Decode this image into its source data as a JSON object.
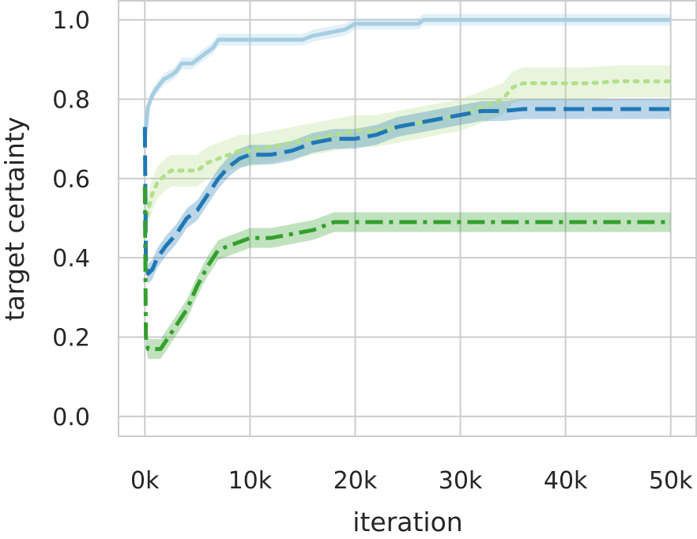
{
  "chart_data": {
    "type": "line",
    "title": "",
    "xlabel": "iteration",
    "ylabel": "target certainty",
    "xlim": [
      -2500,
      52500
    ],
    "ylim": [
      -0.05,
      1.05
    ],
    "x_ticks": [
      0,
      10000,
      20000,
      30000,
      40000,
      50000
    ],
    "x_tick_labels": [
      "0k",
      "10k",
      "20k",
      "30k",
      "40k",
      "50k"
    ],
    "y_ticks": [
      0.0,
      0.2,
      0.4,
      0.6,
      0.8,
      1.0
    ],
    "y_tick_labels": [
      "0.0",
      "0.2",
      "0.4",
      "0.6",
      "0.8",
      "1.0"
    ],
    "grid": true,
    "legend": "none",
    "series": [
      {
        "color": "#a6cee3",
        "style": "solid",
        "band_halfwidth": 0.015,
        "x": [
          0,
          300,
          700,
          1200,
          1800,
          2500,
          3000,
          3500,
          4000,
          4500,
          5000,
          5500,
          6000,
          6500,
          7000,
          7500,
          8000,
          9000,
          10000,
          11000,
          12000,
          13000,
          14000,
          15000,
          16000,
          17000,
          18000,
          19000,
          20000,
          22000,
          24000,
          26000,
          26500,
          30000,
          35000,
          40000,
          45000,
          50000
        ],
        "y": [
          0.7,
          0.78,
          0.81,
          0.83,
          0.85,
          0.86,
          0.87,
          0.89,
          0.89,
          0.89,
          0.9,
          0.91,
          0.92,
          0.93,
          0.95,
          0.95,
          0.95,
          0.95,
          0.95,
          0.95,
          0.95,
          0.95,
          0.95,
          0.95,
          0.96,
          0.965,
          0.97,
          0.975,
          0.99,
          0.99,
          0.99,
          0.99,
          1.0,
          1.0,
          1.0,
          1.0,
          1.0,
          1.0
        ]
      },
      {
        "color": "#b2df8a",
        "style": "dotted",
        "band_halfwidth": 0.04,
        "x": [
          0,
          300,
          700,
          1200,
          2000,
          2500,
          3000,
          4000,
          5000,
          6000,
          7000,
          8000,
          9000,
          10000,
          12000,
          14000,
          16000,
          18000,
          20000,
          22000,
          24000,
          26000,
          28000,
          30000,
          32000,
          34000,
          35000,
          36000,
          38000,
          40000,
          42000,
          45000,
          48000,
          50000
        ],
        "y": [
          0.48,
          0.52,
          0.56,
          0.59,
          0.61,
          0.62,
          0.62,
          0.62,
          0.62,
          0.64,
          0.65,
          0.66,
          0.67,
          0.67,
          0.68,
          0.69,
          0.7,
          0.71,
          0.72,
          0.72,
          0.73,
          0.74,
          0.75,
          0.76,
          0.78,
          0.8,
          0.83,
          0.84,
          0.84,
          0.84,
          0.84,
          0.845,
          0.845,
          0.845
        ]
      },
      {
        "color": "#1f78b4",
        "style": "dashed",
        "band_halfwidth": 0.025,
        "x": [
          0,
          100,
          300,
          700,
          1200,
          2000,
          3000,
          4000,
          5000,
          6000,
          7000,
          8000,
          9000,
          10000,
          12000,
          14000,
          16000,
          18000,
          20000,
          22000,
          24000,
          26000,
          28000,
          30000,
          32000,
          34000,
          36000,
          40000,
          45000,
          50000
        ],
        "y": [
          0.73,
          0.4,
          0.36,
          0.37,
          0.4,
          0.43,
          0.46,
          0.5,
          0.52,
          0.56,
          0.6,
          0.63,
          0.65,
          0.66,
          0.66,
          0.67,
          0.69,
          0.7,
          0.7,
          0.71,
          0.73,
          0.74,
          0.75,
          0.76,
          0.77,
          0.77,
          0.775,
          0.775,
          0.775,
          0.775
        ]
      },
      {
        "color": "#33a02c",
        "style": "dashdot",
        "band_halfwidth": 0.025,
        "x": [
          0,
          100,
          300,
          800,
          1500,
          2000,
          3000,
          4000,
          5000,
          6000,
          7000,
          8000,
          9000,
          10000,
          12000,
          14000,
          16000,
          17000,
          18000,
          20000,
          22000,
          25000,
          30000,
          35000,
          40000,
          45000,
          50000
        ],
        "y": [
          0.58,
          0.2,
          0.17,
          0.17,
          0.17,
          0.19,
          0.23,
          0.27,
          0.33,
          0.38,
          0.42,
          0.43,
          0.44,
          0.45,
          0.45,
          0.46,
          0.47,
          0.48,
          0.49,
          0.49,
          0.49,
          0.49,
          0.49,
          0.49,
          0.49,
          0.49,
          0.49
        ]
      }
    ]
  }
}
